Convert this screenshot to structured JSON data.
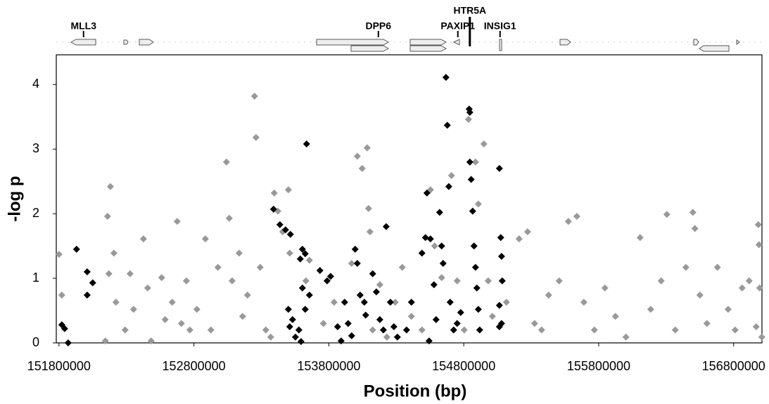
{
  "chart_data": {
    "type": "scatter",
    "x_label": "Position (bp)",
    "y_label": "-log p",
    "xlim": [
      151780000,
      157010000
    ],
    "xticks": [
      151800000,
      152800000,
      153800000,
      154800000,
      155800000,
      156800000
    ],
    "ylim": [
      0,
      4.46
    ],
    "yticks": [
      0,
      1,
      2,
      3,
      4
    ],
    "genes": [
      {
        "name": "MLL3",
        "position": 151982000
      },
      {
        "name": "DPP6",
        "position": 154167000
      },
      {
        "name": "PAXIP1",
        "position": 154756000
      },
      {
        "name": "HTR5A",
        "position": 154845000
      },
      {
        "name": "INSIG1",
        "position": 155069000
      }
    ],
    "series": [
      {
        "color": "#999999",
        "x": [
          151800000,
          151821000,
          152144000,
          152170000,
          152181000,
          152160000,
          152207000,
          152222000,
          152290000,
          152327000,
          152353000,
          152426000,
          152457000,
          152483000,
          152561000,
          152587000,
          152639000,
          152676000,
          152707000,
          152744000,
          152770000,
          152822000,
          152885000,
          152926000,
          152978000,
          153041000,
          153062000,
          153083000,
          153135000,
          153161000,
          153197000,
          153249000,
          153260000,
          153291000,
          153333000,
          153369000,
          153395000,
          153422000,
          153458000,
          153500000,
          153510000,
          153630000,
          153656000,
          153760000,
          153839000,
          153969000,
          154011000,
          154047000,
          154084000,
          154094000,
          154105000,
          154125000,
          154178000,
          154230000,
          154292000,
          154344000,
          154412000,
          154490000,
          154553000,
          154584000,
          154636000,
          154709000,
          154751000,
          154803000,
          154835000,
          154887000,
          154908000,
          154949000,
          154981000,
          155012000,
          155116000,
          155210000,
          155273000,
          155325000,
          155377000,
          155429000,
          155507000,
          155575000,
          155638000,
          155690000,
          155768000,
          155846000,
          155924000,
          156002000,
          156107000,
          156185000,
          156263000,
          156305000,
          156367000,
          156446000,
          156498000,
          156513000,
          156550000,
          156602000,
          156680000,
          156759000,
          156811000,
          156863000,
          156915000,
          156983000,
          156988000,
          156993000,
          156967000,
          157009000
        ],
        "values": [
          1.37,
          0.74,
          0.03,
          1.07,
          2.42,
          1.96,
          1.39,
          0.63,
          0.2,
          1.07,
          0.52,
          1.61,
          0.85,
          0.03,
          1.01,
          0.36,
          0.63,
          1.88,
          0.3,
          0.96,
          0.2,
          0.52,
          1.61,
          0.2,
          1.17,
          2.8,
          1.93,
          0.96,
          1.39,
          0.41,
          0.74,
          3.82,
          3.18,
          1.17,
          0.2,
          0.09,
          2.32,
          2.04,
          1.72,
          2.37,
          1.39,
          0.96,
          1.28,
          0.3,
          0.63,
          1.23,
          2.89,
          2.7,
          3.02,
          2.08,
          1.72,
          0.2,
          0.9,
          0.09,
          0.63,
          1.17,
          0.41,
          0.2,
          2.37,
          1.5,
          1.01,
          2.59,
          0.96,
          0.2,
          3.46,
          2.8,
          2.15,
          3.08,
          0.96,
          0.41,
          0.63,
          1.61,
          1.72,
          0.3,
          0.2,
          0.74,
          0.96,
          1.88,
          1.96,
          0.63,
          0.2,
          0.85,
          0.41,
          0.09,
          1.63,
          0.52,
          0.96,
          1.99,
          0.2,
          1.17,
          2.02,
          1.77,
          0.74,
          0.3,
          1.17,
          0.52,
          0.2,
          0.85,
          0.96,
          1.83,
          1.52,
          0.85,
          0.25,
          0.09
        ]
      },
      {
        "color": "#000000",
        "x": [
          151821000,
          151842000,
          151868000,
          151930000,
          152009000,
          152009000,
          152050000,
          153390000,
          153437000,
          153479000,
          153515000,
          153604000,
          153625000,
          153588000,
          153635000,
          153604000,
          153500000,
          153531000,
          153578000,
          153552000,
          153594000,
          153510000,
          153625000,
          153656000,
          153734000,
          153787000,
          153813000,
          153865000,
          153891000,
          153917000,
          153943000,
          153969000,
          153995000,
          154011000,
          154032000,
          154063000,
          154073000,
          154125000,
          154152000,
          154178000,
          154204000,
          154225000,
          154256000,
          154282000,
          154308000,
          154376000,
          154412000,
          154490000,
          154516000,
          154527000,
          154543000,
          154553000,
          154579000,
          154595000,
          154621000,
          154636000,
          154647000,
          154668000,
          154678000,
          154689000,
          154699000,
          154725000,
          154751000,
          154777000,
          154840000,
          154845000,
          154845000,
          154855000,
          154866000,
          154876000,
          154887000,
          154897000,
          154908000,
          154918000,
          155064000,
          155074000,
          155080000,
          155085000,
          155064000,
          155064000,
          155080000
        ],
        "values": [
          0.28,
          0.22,
          0.0,
          1.45,
          1.1,
          0.74,
          0.93,
          2.07,
          1.83,
          1.75,
          1.68,
          1.45,
          1.38,
          1.3,
          3.08,
          0.85,
          0.52,
          0.36,
          0.2,
          0.09,
          0.02,
          0.25,
          0.52,
          0.74,
          1.12,
          0.96,
          1.03,
          0.25,
          0.03,
          0.63,
          0.3,
          0.11,
          1.45,
          1.23,
          0.74,
          0.63,
          0.43,
          1.07,
          0.79,
          0.36,
          0.2,
          1.8,
          0.63,
          0.25,
          0.09,
          0.2,
          0.63,
          1.39,
          1.63,
          2.32,
          0.03,
          1.61,
          0.9,
          0.36,
          2.02,
          1.5,
          1.23,
          4.11,
          3.37,
          2.42,
          0.63,
          0.2,
          0.3,
          0.47,
          3.62,
          3.57,
          2.8,
          2.53,
          2.04,
          1.5,
          1.17,
          0.85,
          0.52,
          0.2,
          2.7,
          1.63,
          1.34,
          0.96,
          0.58,
          0.25,
          0.3
        ]
      }
    ]
  }
}
